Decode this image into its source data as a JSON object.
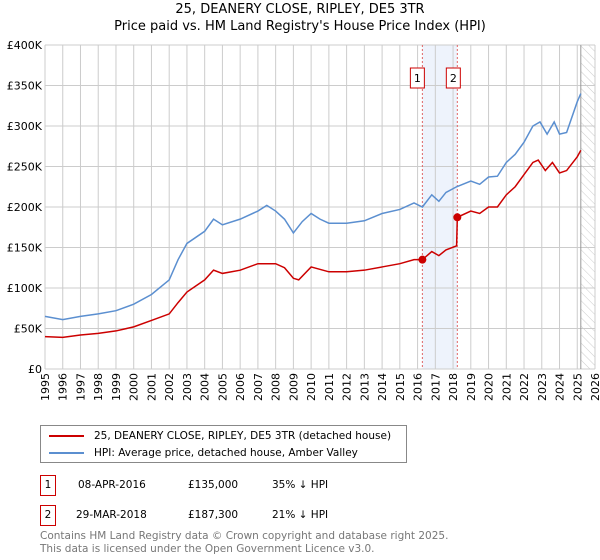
{
  "title": "25, DEANERY CLOSE, RIPLEY, DE5 3TR",
  "subtitle": "Price paid vs. HM Land Registry's House Price Index (HPI)",
  "chart_data": {
    "type": "line",
    "xlim": [
      1995,
      2026
    ],
    "ylim": [
      0,
      400000
    ],
    "x_ticks": [
      "1995",
      "1996",
      "1997",
      "1998",
      "1999",
      "2000",
      "2001",
      "2002",
      "2003",
      "2004",
      "2005",
      "2006",
      "2007",
      "2008",
      "2009",
      "2010",
      "2011",
      "2012",
      "2013",
      "2014",
      "2015",
      "2016",
      "2017",
      "2018",
      "2019",
      "2020",
      "2021",
      "2022",
      "2023",
      "2024",
      "2025",
      "2026"
    ],
    "y_ticks": [
      {
        "v": 0,
        "l": "£0"
      },
      {
        "v": 50000,
        "l": "£50K"
      },
      {
        "v": 100000,
        "l": "£100K"
      },
      {
        "v": 150000,
        "l": "£150K"
      },
      {
        "v": 200000,
        "l": "£200K"
      },
      {
        "v": 250000,
        "l": "£250K"
      },
      {
        "v": 300000,
        "l": "£300K"
      },
      {
        "v": 350000,
        "l": "£350K"
      },
      {
        "v": 400000,
        "l": "£400K"
      }
    ],
    "series": [
      {
        "name": "25, DEANERY CLOSE, RIPLEY, DE5 3TR (detached house)",
        "color": "#cc0000",
        "points": [
          [
            1995,
            40000
          ],
          [
            1996,
            39000
          ],
          [
            1997,
            42000
          ],
          [
            1998,
            44000
          ],
          [
            1999,
            47000
          ],
          [
            2000,
            52000
          ],
          [
            2001,
            60000
          ],
          [
            2002,
            68000
          ],
          [
            2002.5,
            82000
          ],
          [
            2003,
            95000
          ],
          [
            2004,
            110000
          ],
          [
            2004.5,
            122000
          ],
          [
            2005,
            118000
          ],
          [
            2006,
            122000
          ],
          [
            2007,
            130000
          ],
          [
            2008,
            130000
          ],
          [
            2008.5,
            125000
          ],
          [
            2009,
            112000
          ],
          [
            2009.3,
            110000
          ],
          [
            2010,
            126000
          ],
          [
            2011,
            120000
          ],
          [
            2012,
            120000
          ],
          [
            2013,
            122000
          ],
          [
            2014,
            126000
          ],
          [
            2015,
            130000
          ],
          [
            2015.8,
            135000
          ],
          [
            2016.27,
            135000
          ],
          [
            2016.8,
            145000
          ],
          [
            2017.2,
            140000
          ],
          [
            2017.6,
            147000
          ],
          [
            2018.2,
            152000
          ],
          [
            2018.24,
            187300
          ],
          [
            2019,
            195000
          ],
          [
            2019.5,
            192000
          ],
          [
            2020,
            200000
          ],
          [
            2020.5,
            200000
          ],
          [
            2021,
            215000
          ],
          [
            2021.5,
            225000
          ],
          [
            2022,
            240000
          ],
          [
            2022.5,
            255000
          ],
          [
            2022.8,
            258000
          ],
          [
            2023.2,
            245000
          ],
          [
            2023.6,
            255000
          ],
          [
            2024,
            242000
          ],
          [
            2024.4,
            245000
          ],
          [
            2025,
            262000
          ],
          [
            2025.2,
            270000
          ]
        ]
      },
      {
        "name": "HPI: Average price, detached house, Amber Valley",
        "color": "#5b8fd0",
        "points": [
          [
            1995,
            65000
          ],
          [
            1996,
            61000
          ],
          [
            1997,
            65000
          ],
          [
            1998,
            68000
          ],
          [
            1999,
            72000
          ],
          [
            2000,
            80000
          ],
          [
            2001,
            92000
          ],
          [
            2002,
            110000
          ],
          [
            2002.5,
            135000
          ],
          [
            2003,
            155000
          ],
          [
            2004,
            170000
          ],
          [
            2004.5,
            185000
          ],
          [
            2005,
            178000
          ],
          [
            2006,
            185000
          ],
          [
            2007,
            195000
          ],
          [
            2007.5,
            202000
          ],
          [
            2008,
            195000
          ],
          [
            2008.5,
            185000
          ],
          [
            2009,
            168000
          ],
          [
            2009.5,
            182000
          ],
          [
            2010,
            192000
          ],
          [
            2010.5,
            185000
          ],
          [
            2011,
            180000
          ],
          [
            2012,
            180000
          ],
          [
            2013,
            183000
          ],
          [
            2014,
            192000
          ],
          [
            2015,
            197000
          ],
          [
            2015.8,
            205000
          ],
          [
            2016.27,
            200000
          ],
          [
            2016.8,
            215000
          ],
          [
            2017.2,
            207000
          ],
          [
            2017.6,
            218000
          ],
          [
            2018.2,
            225000
          ],
          [
            2019,
            232000
          ],
          [
            2019.5,
            228000
          ],
          [
            2020,
            237000
          ],
          [
            2020.5,
            238000
          ],
          [
            2021,
            255000
          ],
          [
            2021.5,
            265000
          ],
          [
            2022,
            280000
          ],
          [
            2022.5,
            300000
          ],
          [
            2022.9,
            305000
          ],
          [
            2023.3,
            290000
          ],
          [
            2023.7,
            305000
          ],
          [
            2024,
            290000
          ],
          [
            2024.4,
            292000
          ],
          [
            2025,
            330000
          ],
          [
            2025.2,
            340000
          ]
        ]
      }
    ],
    "annotations": [
      {
        "label": "1",
        "x": 2016.27,
        "value": 135000
      },
      {
        "label": "2",
        "x": 2018.24,
        "value": 187300
      }
    ],
    "shaded_range": [
      2016.27,
      2018.24
    ],
    "forecast_hatch_from": 2025.2
  },
  "legend": {
    "items": [
      "25, DEANERY CLOSE, RIPLEY, DE5 3TR (detached house)",
      "HPI: Average price, detached house, Amber Valley"
    ]
  },
  "transactions": [
    {
      "num": "1",
      "date": "08-APR-2016",
      "price": "£135,000",
      "hpi": "35% ↓ HPI"
    },
    {
      "num": "2",
      "date": "29-MAR-2018",
      "price": "£187,300",
      "hpi": "21% ↓ HPI"
    }
  ],
  "footer": {
    "line1": "Contains HM Land Registry data © Crown copyright and database right 2025.",
    "line2": "This data is licensed under the Open Government Licence v3.0."
  }
}
